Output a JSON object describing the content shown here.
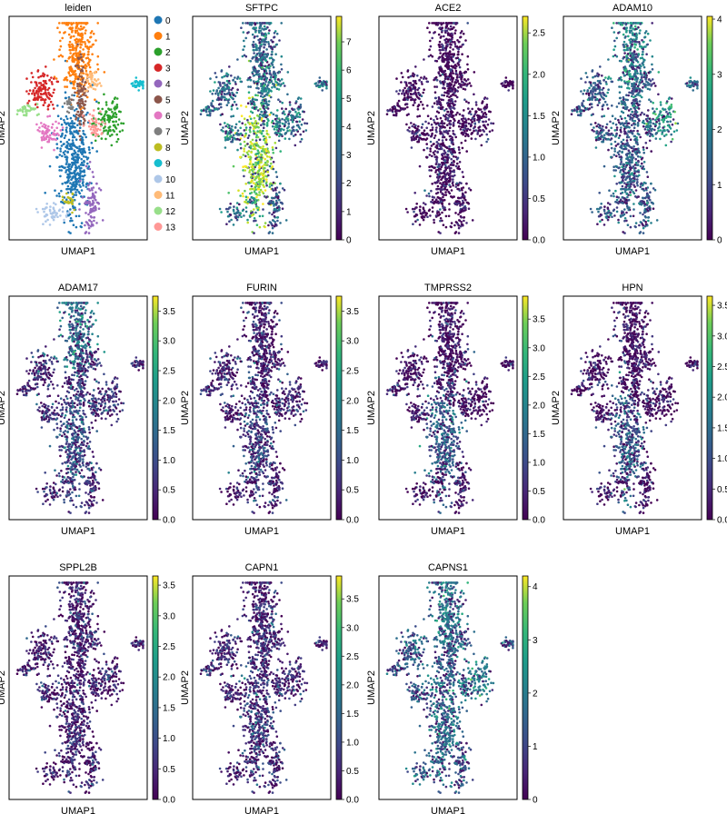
{
  "figure": {
    "xlabel": "UMAP1",
    "ylabel": "UMAP2"
  },
  "legend": {
    "entries": [
      {
        "label": "0",
        "color": "#1f77b4"
      },
      {
        "label": "1",
        "color": "#ff7f0e"
      },
      {
        "label": "2",
        "color": "#2ca02c"
      },
      {
        "label": "3",
        "color": "#d62728"
      },
      {
        "label": "4",
        "color": "#9467bd"
      },
      {
        "label": "5",
        "color": "#8c564b"
      },
      {
        "label": "6",
        "color": "#e377c2"
      },
      {
        "label": "7",
        "color": "#7f7f7f"
      },
      {
        "label": "8",
        "color": "#bcbd22"
      },
      {
        "label": "9",
        "color": "#17becf"
      },
      {
        "label": "10",
        "color": "#aec7e8"
      },
      {
        "label": "11",
        "color": "#ffbb78"
      },
      {
        "label": "12",
        "color": "#98df8a"
      },
      {
        "label": "13",
        "color": "#ff9896"
      }
    ]
  },
  "chart_data": [
    {
      "type": "scatter",
      "title": "leiden",
      "xlabel": "UMAP1",
      "ylabel": "UMAP2",
      "coloring": "categorical"
    },
    {
      "type": "scatter",
      "title": "SFTPC",
      "xlabel": "UMAP1",
      "ylabel": "UMAP2",
      "colorbar": {
        "min": 0,
        "max": 7.9,
        "ticks": [
          "0",
          "1",
          "2",
          "3",
          "4",
          "5",
          "6",
          "7"
        ],
        "colormap": "viridis"
      }
    },
    {
      "type": "scatter",
      "title": "ACE2",
      "xlabel": "UMAP1",
      "ylabel": "UMAP2",
      "colorbar": {
        "min": 0,
        "max": 2.7,
        "ticks": [
          "0.0",
          "0.5",
          "1.0",
          "1.5",
          "2.0",
          "2.5"
        ],
        "colormap": "viridis"
      }
    },
    {
      "type": "scatter",
      "title": "ADAM10",
      "xlabel": "UMAP1",
      "ylabel": "UMAP2",
      "colorbar": {
        "min": 0,
        "max": 4.05,
        "ticks": [
          "0",
          "1",
          "2",
          "3",
          "4"
        ],
        "colormap": "viridis"
      }
    },
    {
      "type": "scatter",
      "title": "ADAM17",
      "xlabel": "UMAP1",
      "ylabel": "UMAP2",
      "colorbar": {
        "min": 0,
        "max": 3.75,
        "ticks": [
          "0.0",
          "0.5",
          "1.0",
          "1.5",
          "2.0",
          "2.5",
          "3.0",
          "3.5"
        ],
        "colormap": "viridis"
      }
    },
    {
      "type": "scatter",
      "title": "FURIN",
      "xlabel": "UMAP1",
      "ylabel": "UMAP2",
      "colorbar": {
        "min": 0,
        "max": 3.75,
        "ticks": [
          "0.0",
          "0.5",
          "1.0",
          "1.5",
          "2.0",
          "2.5",
          "3.0",
          "3.5"
        ],
        "colormap": "viridis"
      }
    },
    {
      "type": "scatter",
      "title": "TMPRSS2",
      "xlabel": "UMAP1",
      "ylabel": "UMAP2",
      "colorbar": {
        "min": 0,
        "max": 3.9,
        "ticks": [
          "0.0",
          "0.5",
          "1.0",
          "1.5",
          "2.0",
          "2.5",
          "3.0",
          "3.5"
        ],
        "colormap": "viridis"
      }
    },
    {
      "type": "scatter",
      "title": "HPN",
      "xlabel": "UMAP1",
      "ylabel": "UMAP2",
      "colorbar": {
        "min": 0,
        "max": 3.65,
        "ticks": [
          "0.0",
          "0.5",
          "1.0",
          "1.5",
          "2.0",
          "2.5",
          "3.0",
          "3.5"
        ],
        "colormap": "viridis"
      }
    },
    {
      "type": "scatter",
      "title": "SPPL2B",
      "xlabel": "UMAP1",
      "ylabel": "UMAP2",
      "colorbar": {
        "min": 0,
        "max": 3.65,
        "ticks": [
          "0.0",
          "0.5",
          "1.0",
          "1.5",
          "2.0",
          "2.5",
          "3.0",
          "3.5"
        ],
        "colormap": "viridis"
      }
    },
    {
      "type": "scatter",
      "title": "CAPN1",
      "xlabel": "UMAP1",
      "ylabel": "UMAP2",
      "colorbar": {
        "min": 0,
        "max": 3.9,
        "ticks": [
          "0.0",
          "0.5",
          "1.0",
          "1.5",
          "2.0",
          "2.5",
          "3.0",
          "3.5"
        ],
        "colormap": "viridis"
      }
    },
    {
      "type": "scatter",
      "title": "CAPNS1",
      "xlabel": "UMAP1",
      "ylabel": "UMAP2",
      "colorbar": {
        "min": 0,
        "max": 4.2,
        "ticks": [
          "0",
          "1",
          "2",
          "3",
          "4"
        ],
        "colormap": "viridis"
      }
    }
  ]
}
